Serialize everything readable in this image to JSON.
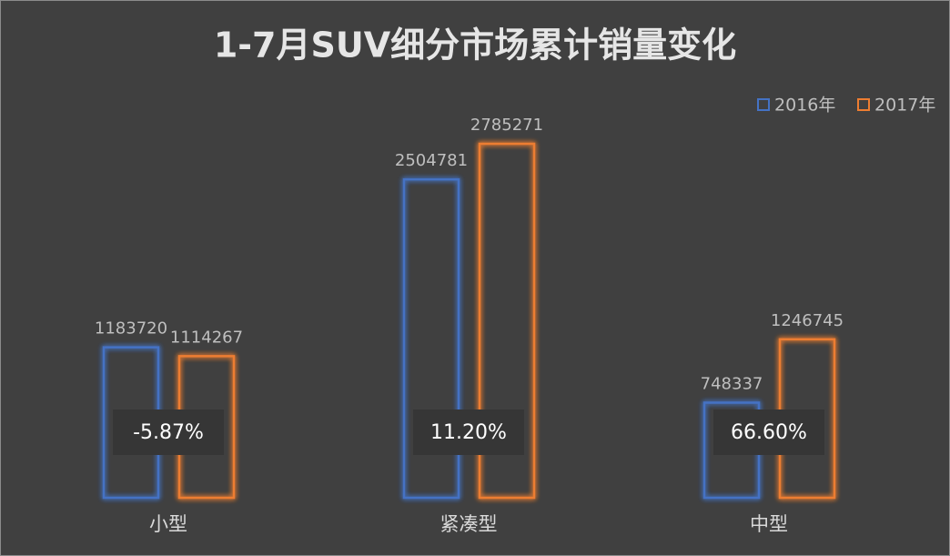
{
  "chart_data": {
    "type": "bar",
    "title": "1-7月SUV细分市场累计销量变化",
    "categories": [
      "小型",
      "紧凑型",
      "中型"
    ],
    "series": [
      {
        "name": "2016年",
        "color": "#4472c4",
        "values": [
          1183720,
          2504781,
          748337
        ]
      },
      {
        "name": "2017年",
        "color": "#ed7d31",
        "values": [
          1114267,
          2785271,
          1246745
        ]
      }
    ],
    "annotations": [
      "-5.87%",
      "11.20%",
      "66.60%"
    ],
    "legend": "top-right"
  }
}
